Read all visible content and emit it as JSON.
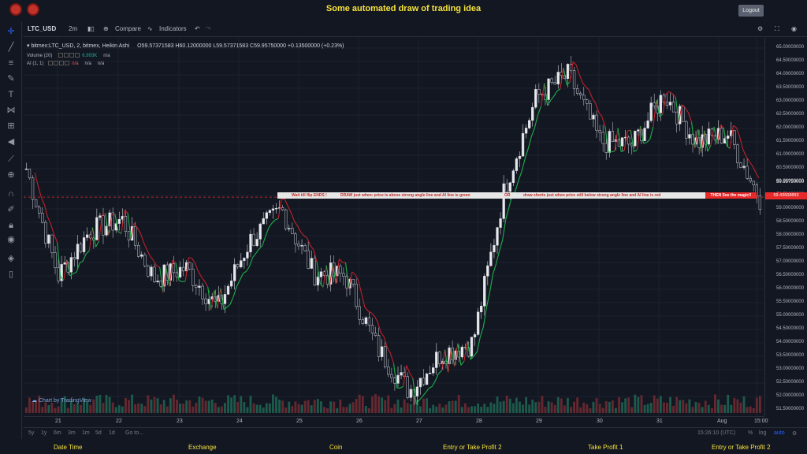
{
  "app": {
    "title": "Some automated draw of trading idea",
    "logout_label": "Logout"
  },
  "toolbar": {
    "symbol": "LTC_USD",
    "interval": "2m",
    "compare_label": "Compare",
    "indicators_label": "Indicators"
  },
  "legend": {
    "main": "bitmex:LTC_USD, 2, bitmex, Heikin Ashi",
    "ohlc": "O59.57371583  H60.12000000  L59.57371583  C59.95750000  +0.13500000 (+0.23%)",
    "volume_label": "Volume (20)",
    "volume_value": "6.993K",
    "volume_na": "n/a",
    "ai_label": "AI (1, 1)",
    "ai_val1": "n/a",
    "ai_val2": "n/a",
    "ai_val3": "n/a"
  },
  "banner": {
    "part1": "Wait till flip ENDS  !",
    "part2": "DRAW just when:  price is above strong angle line and AI line is green",
    "part3": "OR",
    "part4": "draw shorts just when price still below strong angle line and AI line is red",
    "end": "THEN See the magic!!"
  },
  "price_axis": {
    "ticks": [
      "65.00000000",
      "64.50000000",
      "64.00000000",
      "63.50000000",
      "63.00000000",
      "62.50000000",
      "62.00000000",
      "61.50000000",
      "61.00000000",
      "60.50000000",
      "60.00000000",
      "59.50000000",
      "59.00000000",
      "58.50000000",
      "58.00000000",
      "57.50000000",
      "57.00000000",
      "56.50000000",
      "56.00000000",
      "55.50000000",
      "55.00000000",
      "54.50000000",
      "54.00000000",
      "53.50000000",
      "53.00000000",
      "52.50000000",
      "52.00000000",
      "51.50000000"
    ],
    "current_price": "59.95750000",
    "marker_price": "59.43668893"
  },
  "date_axis": {
    "ticks": [
      "21",
      "22",
      "23",
      "24",
      "25",
      "26",
      "27",
      "28",
      "29",
      "30",
      "31",
      "Aug",
      "15:00"
    ]
  },
  "bottom": {
    "ranges": [
      "5y",
      "1y",
      "6m",
      "3m",
      "1m",
      "5d",
      "1d"
    ],
    "goto": "Go to...",
    "time": "15:26:10 (UTC)",
    "pct": "%",
    "log": "log",
    "auto": "auto"
  },
  "watermark": "Chart by TradingView",
  "footer": {
    "labels": [
      "Date Time",
      "Exchange",
      "Coin",
      "Entry or Take Profit 2",
      "Take Profit 1",
      "Entry or Take Profit 2"
    ]
  },
  "colors": {
    "accent": "#f5e23b",
    "up": "#26a69a",
    "down": "#ef5350",
    "banner_red": "#e8292a"
  },
  "chart_data": {
    "type": "line",
    "title": "",
    "xlabel": "",
    "ylabel": "",
    "ylim": [
      51.2,
      65.2
    ],
    "x": [
      "21",
      "21.5",
      "22",
      "22.5",
      "23",
      "23.5",
      "24",
      "24.5",
      "25",
      "25.5",
      "26",
      "26.5",
      "27",
      "27.5",
      "28",
      "28.5",
      "29",
      "29.5",
      "30",
      "30.5",
      "31",
      "31.5",
      "Aug",
      "Aug+"
    ],
    "series": [
      {
        "values": [
          60.5,
          56.5,
          58.2,
          58.6,
          56.4,
          56.8,
          55.3,
          57.8,
          59.0,
          56.6,
          56.5,
          53.8,
          52.2,
          53.6,
          54.0,
          59.8,
          63.2,
          64.0,
          61.5,
          61.4,
          63.3,
          61.5,
          61.8,
          59.4
        ]
      }
    ]
  }
}
